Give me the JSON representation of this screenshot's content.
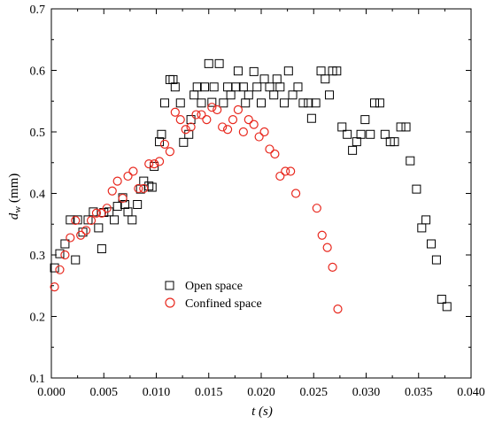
{
  "chart_data": {
    "type": "scatter",
    "xlabel": "t (s)",
    "ylabel_main": "d",
    "ylabel_sub": "w",
    "ylabel_tail": " (mm)",
    "xlim": [
      0.0,
      0.04
    ],
    "ylim": [
      0.1,
      0.7
    ],
    "xticks": [
      "0.000",
      "0.005",
      "0.010",
      "0.015",
      "0.020",
      "0.025",
      "0.030",
      "0.035",
      "0.040"
    ],
    "yticks": [
      "0.1",
      "0.2",
      "0.3",
      "0.4",
      "0.5",
      "0.6",
      "0.7"
    ],
    "grid": false,
    "legend_position": "lower-left",
    "series": [
      {
        "name": "Open space",
        "marker": "square",
        "color": "#000000",
        "points": [
          [
            0.0003,
            0.279
          ],
          [
            0.0008,
            0.302
          ],
          [
            0.0013,
            0.318
          ],
          [
            0.0018,
            0.357
          ],
          [
            0.0023,
            0.292
          ],
          [
            0.0025,
            0.357
          ],
          [
            0.003,
            0.337
          ],
          [
            0.0035,
            0.357
          ],
          [
            0.004,
            0.37
          ],
          [
            0.0045,
            0.344
          ],
          [
            0.0048,
            0.31
          ],
          [
            0.005,
            0.369
          ],
          [
            0.0055,
            0.37
          ],
          [
            0.006,
            0.357
          ],
          [
            0.0063,
            0.379
          ],
          [
            0.0068,
            0.393
          ],
          [
            0.007,
            0.382
          ],
          [
            0.0073,
            0.37
          ],
          [
            0.0077,
            0.357
          ],
          [
            0.0082,
            0.382
          ],
          [
            0.0085,
            0.407
          ],
          [
            0.0088,
            0.42
          ],
          [
            0.0093,
            0.412
          ],
          [
            0.0096,
            0.41
          ],
          [
            0.0098,
            0.444
          ],
          [
            0.0103,
            0.484
          ],
          [
            0.0105,
            0.496
          ],
          [
            0.0108,
            0.547
          ],
          [
            0.0113,
            0.585
          ],
          [
            0.0116,
            0.585
          ],
          [
            0.0118,
            0.573
          ],
          [
            0.0123,
            0.547
          ],
          [
            0.0126,
            0.483
          ],
          [
            0.0131,
            0.496
          ],
          [
            0.0133,
            0.52
          ],
          [
            0.0136,
            0.56
          ],
          [
            0.0139,
            0.573
          ],
          [
            0.0143,
            0.547
          ],
          [
            0.0146,
            0.573
          ],
          [
            0.015,
            0.611
          ],
          [
            0.0153,
            0.548
          ],
          [
            0.0155,
            0.573
          ],
          [
            0.016,
            0.611
          ],
          [
            0.0164,
            0.547
          ],
          [
            0.0168,
            0.573
          ],
          [
            0.0171,
            0.56
          ],
          [
            0.0176,
            0.573
          ],
          [
            0.0178,
            0.599
          ],
          [
            0.0183,
            0.573
          ],
          [
            0.0185,
            0.547
          ],
          [
            0.0188,
            0.56
          ],
          [
            0.0193,
            0.598
          ],
          [
            0.0196,
            0.573
          ],
          [
            0.02,
            0.547
          ],
          [
            0.0203,
            0.586
          ],
          [
            0.0208,
            0.573
          ],
          [
            0.0212,
            0.56
          ],
          [
            0.0215,
            0.586
          ],
          [
            0.0218,
            0.573
          ],
          [
            0.0222,
            0.547
          ],
          [
            0.0226,
            0.599
          ],
          [
            0.023,
            0.56
          ],
          [
            0.0235,
            0.573
          ],
          [
            0.024,
            0.547
          ],
          [
            0.0245,
            0.547
          ],
          [
            0.0248,
            0.522
          ],
          [
            0.0252,
            0.547
          ],
          [
            0.0257,
            0.599
          ],
          [
            0.0261,
            0.586
          ],
          [
            0.0265,
            0.56
          ],
          [
            0.0268,
            0.599
          ],
          [
            0.0272,
            0.599
          ],
          [
            0.0277,
            0.508
          ],
          [
            0.0282,
            0.496
          ],
          [
            0.0287,
            0.47
          ],
          [
            0.0291,
            0.484
          ],
          [
            0.0295,
            0.496
          ],
          [
            0.0299,
            0.52
          ],
          [
            0.0304,
            0.496
          ],
          [
            0.0308,
            0.547
          ],
          [
            0.0313,
            0.547
          ],
          [
            0.0318,
            0.496
          ],
          [
            0.0323,
            0.484
          ],
          [
            0.0327,
            0.484
          ],
          [
            0.0333,
            0.508
          ],
          [
            0.0338,
            0.508
          ],
          [
            0.0342,
            0.453
          ],
          [
            0.0348,
            0.407
          ],
          [
            0.0353,
            0.344
          ],
          [
            0.0357,
            0.357
          ],
          [
            0.0362,
            0.318
          ],
          [
            0.0367,
            0.292
          ],
          [
            0.0372,
            0.228
          ],
          [
            0.0377,
            0.216
          ]
        ]
      },
      {
        "name": "Confined space",
        "marker": "circle",
        "color": "#e8281e",
        "points": [
          [
            0.0003,
            0.248
          ],
          [
            0.0008,
            0.276
          ],
          [
            0.0013,
            0.3
          ],
          [
            0.0018,
            0.328
          ],
          [
            0.0023,
            0.356
          ],
          [
            0.0028,
            0.332
          ],
          [
            0.0033,
            0.34
          ],
          [
            0.0038,
            0.356
          ],
          [
            0.0043,
            0.368
          ],
          [
            0.0048,
            0.368
          ],
          [
            0.0053,
            0.376
          ],
          [
            0.0058,
            0.404
          ],
          [
            0.0063,
            0.42
          ],
          [
            0.0068,
            0.392
          ],
          [
            0.0073,
            0.428
          ],
          [
            0.0078,
            0.436
          ],
          [
            0.0083,
            0.408
          ],
          [
            0.0088,
            0.408
          ],
          [
            0.0093,
            0.448
          ],
          [
            0.0098,
            0.448
          ],
          [
            0.0103,
            0.452
          ],
          [
            0.0108,
            0.48
          ],
          [
            0.0113,
            0.468
          ],
          [
            0.0118,
            0.532
          ],
          [
            0.0123,
            0.52
          ],
          [
            0.0128,
            0.504
          ],
          [
            0.0133,
            0.508
          ],
          [
            0.0138,
            0.528
          ],
          [
            0.0143,
            0.528
          ],
          [
            0.0148,
            0.52
          ],
          [
            0.0153,
            0.54
          ],
          [
            0.0158,
            0.536
          ],
          [
            0.0163,
            0.508
          ],
          [
            0.0168,
            0.504
          ],
          [
            0.0173,
            0.52
          ],
          [
            0.0178,
            0.536
          ],
          [
            0.0183,
            0.5
          ],
          [
            0.0188,
            0.52
          ],
          [
            0.0193,
            0.512
          ],
          [
            0.0198,
            0.492
          ],
          [
            0.0203,
            0.5
          ],
          [
            0.0208,
            0.472
          ],
          [
            0.0213,
            0.464
          ],
          [
            0.0218,
            0.428
          ],
          [
            0.0223,
            0.436
          ],
          [
            0.0228,
            0.436
          ],
          [
            0.0233,
            0.4
          ],
          [
            0.0253,
            0.376
          ],
          [
            0.0258,
            0.332
          ],
          [
            0.0263,
            0.312
          ],
          [
            0.0268,
            0.28
          ],
          [
            0.0273,
            0.212
          ]
        ]
      }
    ]
  }
}
